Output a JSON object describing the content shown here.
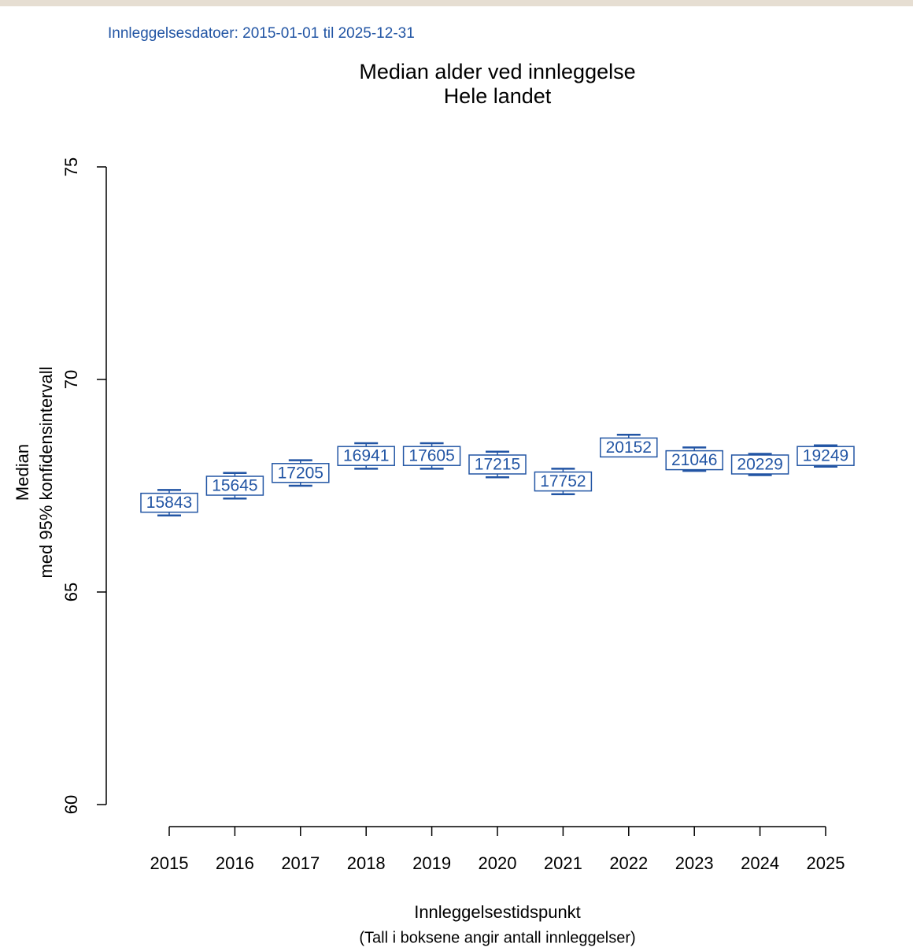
{
  "chart_data": {
    "type": "median-ci",
    "subtitle": "Innleggelsesdatoer: 2015-01-01 til 2025-12-31",
    "title": [
      "Median alder ved innleggelse",
      "Hele landet"
    ],
    "y_label": [
      "Median",
      "med 95% konfidensintervall"
    ],
    "x_label": "Innleggelsestidspunkt",
    "x_note": "(Tall i boksene angir antall innleggelser)",
    "categories": [
      "2015",
      "2016",
      "2017",
      "2018",
      "2019",
      "2020",
      "2021",
      "2022",
      "2023",
      "2024",
      "2025"
    ],
    "series": [
      {
        "color": "#2255a4",
        "values": [
          67.1,
          67.5,
          67.8,
          68.2,
          68.2,
          68.0,
          67.6,
          68.4,
          68.1,
          68.0,
          68.2
        ],
        "lower": [
          66.8,
          67.2,
          67.5,
          67.9,
          67.9,
          67.7,
          67.3,
          68.2,
          67.85,
          67.75,
          67.95
        ],
        "upper": [
          67.4,
          67.8,
          68.1,
          68.5,
          68.5,
          68.3,
          67.9,
          68.7,
          68.4,
          68.25,
          68.45
        ],
        "counts": [
          15843,
          15645,
          17205,
          16941,
          17605,
          17215,
          17752,
          20152,
          21046,
          20229,
          19249
        ]
      }
    ],
    "ylim": [
      60,
      75
    ],
    "yticks": [
      60,
      65,
      70,
      75
    ]
  }
}
